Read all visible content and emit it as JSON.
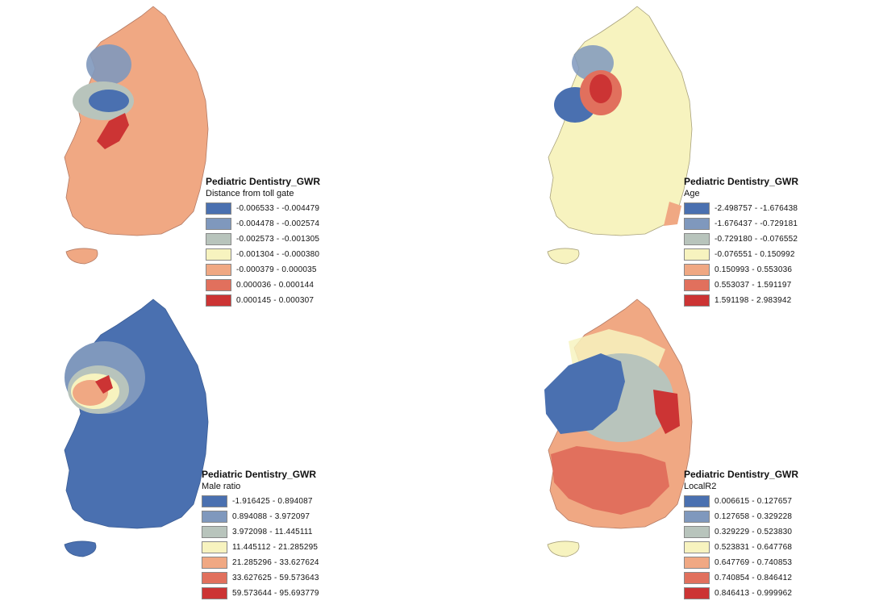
{
  "panels": [
    {
      "legend": {
        "title": "Pediatric Dentistry_GWR",
        "variable": "Distance from toll gate",
        "classes": [
          {
            "label": "-0.006533 - -0.004479",
            "color": "#4a70b0"
          },
          {
            "label": "-0.004478 - -0.002574",
            "color": "#7f98bd"
          },
          {
            "label": "-0.002573 - -0.001305",
            "color": "#b8c4bc"
          },
          {
            "label": "-0.001304 - -0.000380",
            "color": "#f7f3bf"
          },
          {
            "label": "-0.000379 - 0.000035",
            "color": "#f0a883"
          },
          {
            "label": "0.000036 - 0.000144",
            "color": "#e1705d"
          },
          {
            "label": "0.000145 - 0.000307",
            "color": "#cc3434"
          }
        ]
      },
      "base_color": "#f0a883",
      "zones": [
        {
          "color": "#7f98bd",
          "kind": "capital"
        },
        {
          "color": "#b8c4bc",
          "kind": "ring"
        },
        {
          "color": "#4a70b0",
          "kind": "west-center"
        },
        {
          "color": "#cc3434",
          "kind": "center-south"
        }
      ]
    },
    {
      "legend": {
        "title": "Pediatric Dentistry_GWR",
        "variable": "Age",
        "classes": [
          {
            "label": "-2.498757 - -1.676438",
            "color": "#4a70b0"
          },
          {
            "label": "-1.676437 - -0.729181",
            "color": "#7f98bd"
          },
          {
            "label": "-0.729180 - -0.076552",
            "color": "#b8c4bc"
          },
          {
            "label": "-0.076551 - 0.150992",
            "color": "#f7f3bf"
          },
          {
            "label": "0.150993 - 0.553036",
            "color": "#f0a883"
          },
          {
            "label": "0.553037 - 1.591197",
            "color": "#e1705d"
          },
          {
            "label": "1.591198 - 2.983942",
            "color": "#cc3434"
          }
        ]
      },
      "base_color": "#f7f3bf",
      "zones": [
        {
          "color": "#7f98bd",
          "kind": "capital"
        },
        {
          "color": "#4a70b0",
          "kind": "west-coast"
        },
        {
          "color": "#e1705d",
          "kind": "center-ring"
        },
        {
          "color": "#cc3434",
          "kind": "center"
        },
        {
          "color": "#f0a883",
          "kind": "south-coast"
        }
      ]
    },
    {
      "legend": {
        "title": "Pediatric Dentistry_GWR",
        "variable": "Male ratio",
        "classes": [
          {
            "label": "-1.916425 - 0.894087",
            "color": "#4a70b0"
          },
          {
            "label": "0.894088 - 3.972097",
            "color": "#7f98bd"
          },
          {
            "label": "3.972098 - 11.445111",
            "color": "#b8c4bc"
          },
          {
            "label": "11.445112 - 21.285295",
            "color": "#f7f3bf"
          },
          {
            "label": "21.285296 - 33.627624",
            "color": "#f0a883"
          },
          {
            "label": "33.627625 - 59.573643",
            "color": "#e1705d"
          },
          {
            "label": "59.573644 - 95.693779",
            "color": "#cc3434"
          }
        ]
      },
      "base_color": "#4a70b0",
      "zones": [
        {
          "color": "#7f98bd",
          "kind": "northwest"
        },
        {
          "color": "#b8c4bc",
          "kind": "west-ring"
        },
        {
          "color": "#f7f3bf",
          "kind": "west-inner"
        },
        {
          "color": "#f0a883",
          "kind": "west-core"
        },
        {
          "color": "#cc3434",
          "kind": "west-hot"
        }
      ]
    },
    {
      "legend": {
        "title": "Pediatric Dentistry_GWR",
        "variable": "LocalR2",
        "classes": [
          {
            "label": "0.006615 - 0.127657",
            "color": "#4a70b0"
          },
          {
            "label": "0.127658 - 0.329228",
            "color": "#7f98bd"
          },
          {
            "label": "0.329229 - 0.523830",
            "color": "#b8c4bc"
          },
          {
            "label": "0.523831 - 0.647768",
            "color": "#f7f3bf"
          },
          {
            "label": "0.647769 - 0.740853",
            "color": "#f0a883"
          },
          {
            "label": "0.740854 - 0.846412",
            "color": "#e1705d"
          },
          {
            "label": "0.846413 - 0.999962",
            "color": "#cc3434"
          }
        ]
      },
      "base_color": "#f0a883",
      "zones": [
        {
          "color": "#f7f3bf",
          "kind": "north"
        },
        {
          "color": "#b8c4bc",
          "kind": "center-ring"
        },
        {
          "color": "#4a70b0",
          "kind": "west-center"
        },
        {
          "color": "#e1705d",
          "kind": "south"
        },
        {
          "color": "#cc3434",
          "kind": "southeast"
        }
      ]
    }
  ]
}
